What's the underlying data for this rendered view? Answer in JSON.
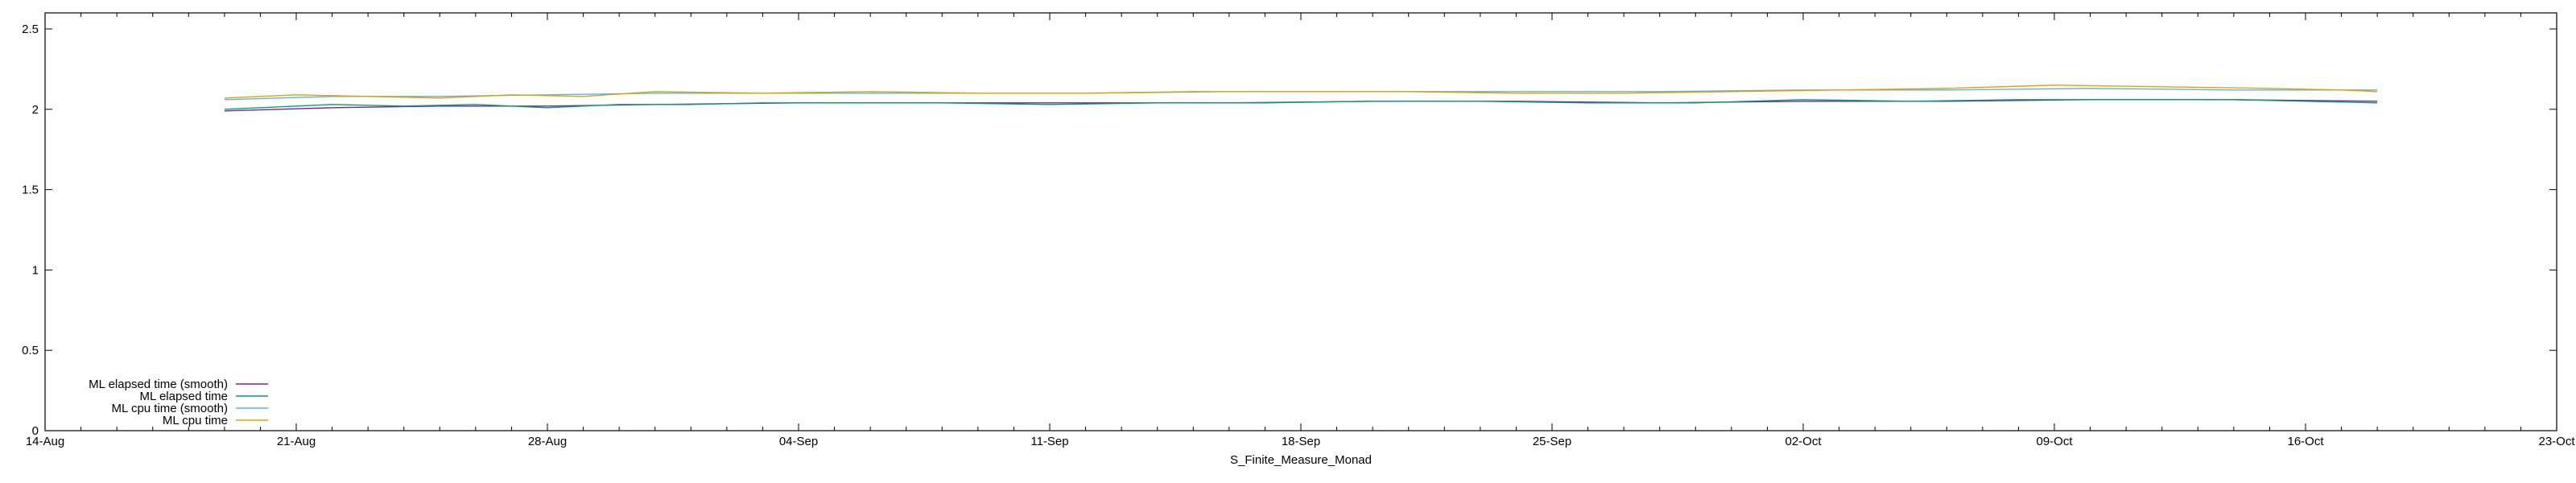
{
  "chart_data": {
    "type": "line",
    "title": "",
    "xlabel": "S_Finite_Measure_Monad",
    "ylabel": "",
    "x_range": [
      "2023-08-14",
      "2023-10-23"
    ],
    "ylim": [
      0,
      2.6
    ],
    "y_ticks": [
      0,
      0.5,
      1,
      1.5,
      2,
      2.5
    ],
    "y_tick_labels": [
      "0",
      "0.5",
      "1",
      "1.5",
      "2",
      "2.5"
    ],
    "x_ticks": [
      "2023-08-14",
      "2023-08-21",
      "2023-08-28",
      "2023-09-04",
      "2023-09-11",
      "2023-09-18",
      "2023-09-25",
      "2023-10-02",
      "2023-10-09",
      "2023-10-16",
      "2023-10-23"
    ],
    "x_tick_labels": [
      "14-Aug",
      "21-Aug",
      "28-Aug",
      "04-Sep",
      "11-Sep",
      "18-Sep",
      "25-Sep",
      "02-Oct",
      "09-Oct",
      "16-Oct",
      "23-Oct"
    ],
    "grid": false,
    "legend_position": "bottom-left",
    "series": [
      {
        "name": "ML elapsed time (smooth)",
        "color": "#7b1fa2",
        "points": [
          [
            "2023-08-19",
            1.99
          ],
          [
            "2023-08-22",
            2.01
          ],
          [
            "2023-08-25",
            2.02
          ],
          [
            "2023-08-28",
            2.02
          ],
          [
            "2023-08-31",
            2.03
          ],
          [
            "2023-09-04",
            2.04
          ],
          [
            "2023-09-08",
            2.04
          ],
          [
            "2023-09-12",
            2.04
          ],
          [
            "2023-09-16",
            2.04
          ],
          [
            "2023-09-20",
            2.05
          ],
          [
            "2023-09-24",
            2.05
          ],
          [
            "2023-09-28",
            2.04
          ],
          [
            "2023-10-02",
            2.05
          ],
          [
            "2023-10-06",
            2.05
          ],
          [
            "2023-10-10",
            2.06
          ],
          [
            "2023-10-14",
            2.06
          ],
          [
            "2023-10-18",
            2.05
          ]
        ]
      },
      {
        "name": "ML elapsed time",
        "color": "#009e73",
        "points": [
          [
            "2023-08-19",
            2.0
          ],
          [
            "2023-08-20",
            2.01
          ],
          [
            "2023-08-22",
            2.03
          ],
          [
            "2023-08-24",
            2.02
          ],
          [
            "2023-08-26",
            2.03
          ],
          [
            "2023-08-28",
            2.01
          ],
          [
            "2023-08-30",
            2.03
          ],
          [
            "2023-09-01",
            2.03
          ],
          [
            "2023-09-03",
            2.04
          ],
          [
            "2023-09-05",
            2.04
          ],
          [
            "2023-09-08",
            2.04
          ],
          [
            "2023-09-11",
            2.03
          ],
          [
            "2023-09-14",
            2.04
          ],
          [
            "2023-09-17",
            2.04
          ],
          [
            "2023-09-20",
            2.05
          ],
          [
            "2023-09-23",
            2.05
          ],
          [
            "2023-09-26",
            2.04
          ],
          [
            "2023-09-29",
            2.04
          ],
          [
            "2023-10-02",
            2.06
          ],
          [
            "2023-10-05",
            2.05
          ],
          [
            "2023-10-08",
            2.06
          ],
          [
            "2023-10-11",
            2.06
          ],
          [
            "2023-10-14",
            2.06
          ],
          [
            "2023-10-16",
            2.05
          ],
          [
            "2023-10-18",
            2.04
          ]
        ]
      },
      {
        "name": "ML cpu time (smooth)",
        "color": "#56b4e9",
        "points": [
          [
            "2023-08-19",
            2.06
          ],
          [
            "2023-08-22",
            2.08
          ],
          [
            "2023-08-25",
            2.08
          ],
          [
            "2023-08-28",
            2.09
          ],
          [
            "2023-08-31",
            2.1
          ],
          [
            "2023-09-04",
            2.1
          ],
          [
            "2023-09-08",
            2.1
          ],
          [
            "2023-09-12",
            2.1
          ],
          [
            "2023-09-16",
            2.11
          ],
          [
            "2023-09-20",
            2.11
          ],
          [
            "2023-09-24",
            2.11
          ],
          [
            "2023-09-28",
            2.11
          ],
          [
            "2023-10-02",
            2.12
          ],
          [
            "2023-10-06",
            2.12
          ],
          [
            "2023-10-10",
            2.13
          ],
          [
            "2023-10-14",
            2.12
          ],
          [
            "2023-10-18",
            2.12
          ]
        ]
      },
      {
        "name": "ML cpu time",
        "color": "#e69f00",
        "points": [
          [
            "2023-08-19",
            2.07
          ],
          [
            "2023-08-21",
            2.09
          ],
          [
            "2023-08-23",
            2.08
          ],
          [
            "2023-08-25",
            2.07
          ],
          [
            "2023-08-27",
            2.09
          ],
          [
            "2023-08-29",
            2.08
          ],
          [
            "2023-08-31",
            2.11
          ],
          [
            "2023-09-03",
            2.1
          ],
          [
            "2023-09-06",
            2.11
          ],
          [
            "2023-09-09",
            2.1
          ],
          [
            "2023-09-12",
            2.1
          ],
          [
            "2023-09-15",
            2.11
          ],
          [
            "2023-09-18",
            2.11
          ],
          [
            "2023-09-21",
            2.11
          ],
          [
            "2023-09-24",
            2.1
          ],
          [
            "2023-09-27",
            2.1
          ],
          [
            "2023-09-30",
            2.11
          ],
          [
            "2023-10-03",
            2.12
          ],
          [
            "2023-10-06",
            2.13
          ],
          [
            "2023-10-09",
            2.15
          ],
          [
            "2023-10-12",
            2.14
          ],
          [
            "2023-10-15",
            2.13
          ],
          [
            "2023-10-17",
            2.12
          ],
          [
            "2023-10-18",
            2.11
          ]
        ]
      }
    ]
  }
}
